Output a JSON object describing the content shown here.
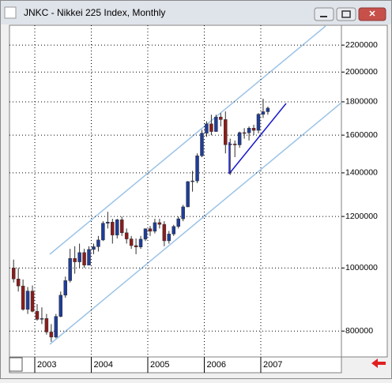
{
  "chart_data": {
    "type": "candlestick",
    "title": "JNKC - Nikkei 225 Index, Monthly",
    "categories": [
      null,
      null,
      null,
      null,
      null,
      "2003",
      null,
      null,
      null,
      null,
      null,
      null,
      null,
      null,
      null,
      null,
      null,
      "2004",
      null,
      null,
      null,
      null,
      null,
      null,
      null,
      null,
      null,
      null,
      null,
      "2005",
      null,
      null,
      null,
      null,
      null,
      null,
      null,
      null,
      null,
      null,
      null,
      "2006",
      null,
      null,
      null,
      null,
      null,
      null,
      null,
      null,
      null,
      null,
      null,
      "2007",
      null
    ],
    "open": [
      1000000,
      961900,
      938300,
      864000,
      921600,
      857900,
      834000,
      836300,
      797300,
      783100,
      842500,
      908300,
      956300,
      1034400,
      1021900,
      1056000,
      1010000,
      1067700,
      1078300,
      1104200,
      1171500,
      1176200,
      1123600,
      1185900,
      1132600,
      1108200,
      1082400,
      1077100,
      1107300,
      1148900,
      1138800,
      1174000,
      1166900,
      1100900,
      1127700,
      1158400,
      1190000,
      1241400,
      1357400,
      1360700,
      1487200,
      1611100,
      1665000,
      1620500,
      1706000,
      1690600,
      1546700,
      1550500,
      1545700,
      1614100,
      1612800,
      1639900,
      1627400,
      1722600,
      1738300
    ],
    "high": [
      1030000,
      1000000,
      960000,
      935000,
      940000,
      880000,
      870000,
      850000,
      820000,
      850000,
      920000,
      970000,
      1070000,
      1080000,
      1090000,
      1070000,
      1080000,
      1090000,
      1120000,
      1180000,
      1220000,
      1190000,
      1190000,
      1200000,
      1150000,
      1120000,
      1110000,
      1120000,
      1150000,
      1160000,
      1190000,
      1190000,
      1180000,
      1140000,
      1165000,
      1200000,
      1250000,
      1360000,
      1410000,
      1500000,
      1630000,
      1680000,
      1720000,
      1720000,
      1730000,
      1740000,
      1580000,
      1570000,
      1620000,
      1640000,
      1650000,
      1660000,
      1730000,
      1820000,
      1770000
    ],
    "low": [
      950000,
      920000,
      860000,
      850000,
      855000,
      830000,
      820000,
      790000,
      770000,
      780000,
      840000,
      900000,
      950000,
      980000,
      1000000,
      1000000,
      1010000,
      1050000,
      1060000,
      1100000,
      1150000,
      1090000,
      1110000,
      1120000,
      1090000,
      1070000,
      1050000,
      1070000,
      1100000,
      1120000,
      1130000,
      1150000,
      1080000,
      1090000,
      1120000,
      1150000,
      1180000,
      1240000,
      1310000,
      1350000,
      1480000,
      1590000,
      1600000,
      1620000,
      1650000,
      1500000,
      1390000,
      1480000,
      1530000,
      1580000,
      1570000,
      1600000,
      1610000,
      1700000,
      1720000
    ],
    "close": [
      961900,
      938300,
      864000,
      921600,
      857900,
      834000,
      836300,
      797300,
      783100,
      842500,
      908300,
      956300,
      1034400,
      1021900,
      1056000,
      1010000,
      1067700,
      1078300,
      1104200,
      1171500,
      1176200,
      1123600,
      1185900,
      1132600,
      1108200,
      1082400,
      1077100,
      1107300,
      1148900,
      1138800,
      1174000,
      1166900,
      1100900,
      1127700,
      1158400,
      1190000,
      1241400,
      1357400,
      1360700,
      1487200,
      1611100,
      1665000,
      1620500,
      1706000,
      1690600,
      1546700,
      1550500,
      1545700,
      1614100,
      1612800,
      1639900,
      1627400,
      1722600,
      1738300,
      1760400
    ],
    "up_color": "#1f3d99",
    "down_color": "#8b1c1c",
    "wick_color": "#303030",
    "ylim": [
      730000,
      2360000
    ],
    "log_scale": true,
    "grid": true,
    "yticks": [
      800000,
      1000000,
      1200000,
      1400000,
      1600000,
      1800000,
      2000000,
      2200000
    ]
  }
}
